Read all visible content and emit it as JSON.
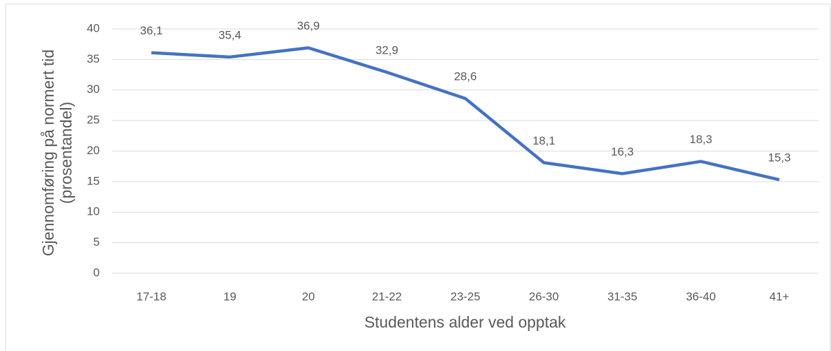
{
  "chart_data": {
    "type": "line",
    "xlabel": "Studentens alder ved opptak",
    "ylabel": [
      "Gjennomføring på normert tid",
      "(prosentandel)"
    ],
    "categories": [
      "17-18",
      "19",
      "20",
      "21-22",
      "23-25",
      "26-30",
      "31-35",
      "36-40",
      "41+"
    ],
    "series": [
      {
        "name": "Gjennomføring",
        "color": "#4472c4",
        "values": [
          36.1,
          35.4,
          36.9,
          32.9,
          28.6,
          18.1,
          16.3,
          18.3,
          15.3
        ],
        "value_labels": [
          "36,1",
          "35,4",
          "36,9",
          "32,9",
          "28,6",
          "18,1",
          "16,3",
          "18,3",
          "15,3"
        ]
      }
    ],
    "ylim": [
      0,
      40
    ],
    "yticks": [
      0,
      5,
      10,
      15,
      20,
      25,
      30,
      35,
      40
    ],
    "grid": true
  }
}
